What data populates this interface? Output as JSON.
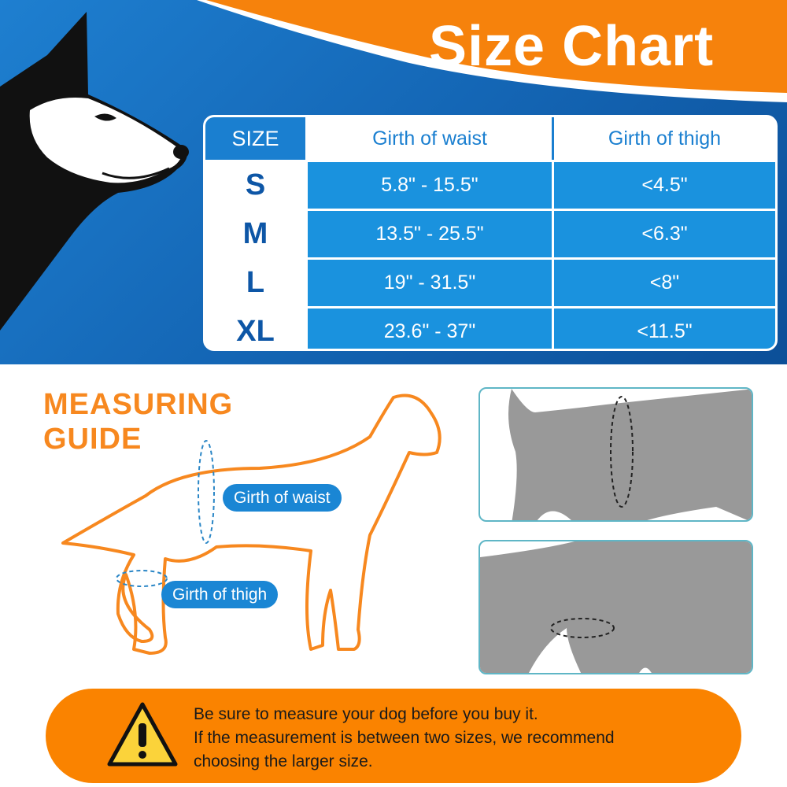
{
  "title": "Size Chart",
  "table": {
    "headers": [
      "SIZE",
      "Girth of waist",
      "Girth of thigh"
    ],
    "rows": [
      {
        "size": "S",
        "waist": "5.8\" - 15.5\"",
        "thigh": "<4.5\""
      },
      {
        "size": "M",
        "waist": "13.5\" - 25.5\"",
        "thigh": "<6.3\""
      },
      {
        "size": "L",
        "waist": "19\" - 31.5\"",
        "thigh": "<8\""
      },
      {
        "size": "XL",
        "waist": "23.6\" - 37\"",
        "thigh": "<11.5\""
      }
    ]
  },
  "guide": {
    "line1": "MEASURING",
    "line2": "GUIDE",
    "waist_label": "Girth of waist",
    "thigh_label": "Girth of thigh"
  },
  "notice": {
    "icon": "warning-icon",
    "line1": "Be sure to measure your dog before you buy it.",
    "line2": "If the measurement is between two sizes, we recommend",
    "line3": "choosing the larger size."
  },
  "colors": {
    "blue": "#1a7fd0",
    "orange": "#fa8300",
    "dark_blue": "#0d56a6"
  }
}
